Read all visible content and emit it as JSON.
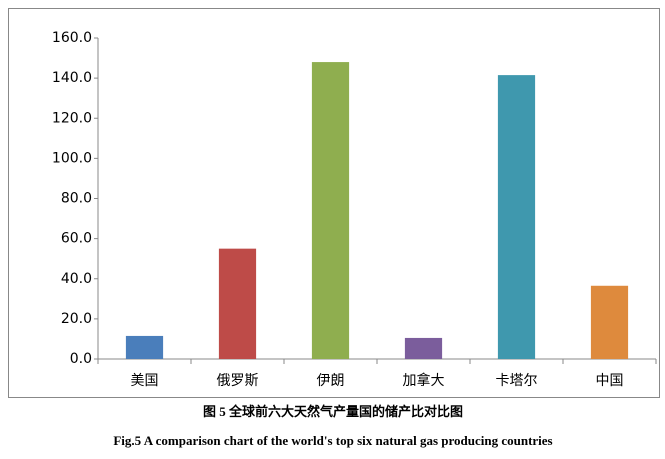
{
  "chart_data": {
    "type": "bar",
    "title": "图 5  全球前六大天然气产量国的储产比对比图",
    "subtitle": "Fig.5 A comparison chart of the world's top six natural gas producing countries",
    "categories": [
      "美国",
      "俄罗斯",
      "伊朗",
      "加拿大",
      "卡塔尔",
      "中国"
    ],
    "values": [
      11.5,
      55,
      148,
      10.5,
      141.5,
      36.5
    ],
    "colors": [
      "#4a7ebb",
      "#be4b48",
      "#8fae4f",
      "#7b5d9c",
      "#3f98ae",
      "#de8a3d"
    ],
    "ylim": [
      0,
      160
    ],
    "yticks": [
      {
        "value": 0,
        "label": "0.0"
      },
      {
        "value": 20,
        "label": "20.0"
      },
      {
        "value": 40,
        "label": "40.0"
      },
      {
        "value": 60,
        "label": "60.0"
      },
      {
        "value": 80,
        "label": "80.0"
      },
      {
        "value": 100,
        "label": "100.0"
      },
      {
        "value": 120,
        "label": "120.0"
      },
      {
        "value": 140,
        "label": "140.0"
      },
      {
        "value": 160,
        "label": "160.0"
      }
    ],
    "grid": false
  }
}
